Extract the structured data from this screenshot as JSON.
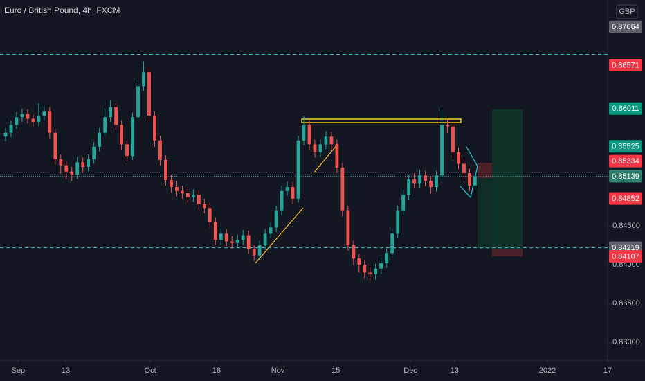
{
  "chart_data": {
    "type": "candlestick",
    "title": "Euro / British Pound, 4h, FXCM",
    "currency": "GBP",
    "up_color": "#26a69a",
    "down_color": "#ef5350",
    "xlim": [
      0,
      110
    ],
    "ylim": [
      0.8277,
      0.8741
    ],
    "xticks": [
      {
        "value": 3.3,
        "label": "Sep"
      },
      {
        "value": 11.9,
        "label": "13"
      },
      {
        "value": 27.2,
        "label": "Oct"
      },
      {
        "value": 39.2,
        "label": "18"
      },
      {
        "value": 50.3,
        "label": "Nov"
      },
      {
        "value": 60.8,
        "label": "15"
      },
      {
        "value": 74.3,
        "label": "Dec"
      },
      {
        "value": 82.3,
        "label": "13"
      },
      {
        "value": 99.1,
        "label": "2022"
      },
      {
        "value": 110,
        "label": "17"
      }
    ],
    "yticks": [
      {
        "value": 0.845,
        "label": "0.84500"
      },
      {
        "value": 0.84,
        "label": "0.84000"
      },
      {
        "value": 0.835,
        "label": "0.83500"
      },
      {
        "value": 0.83,
        "label": "0.83000"
      }
    ],
    "price_lines": [
      {
        "value": 0.8671,
        "color": "#26c6da",
        "style": "dashed"
      },
      {
        "value": 0.84219,
        "color": "#26c6da",
        "style": "dashed"
      },
      {
        "value": 0.85139,
        "color": "#26a69a",
        "style": "dotted"
      }
    ],
    "price_labels": [
      {
        "value": 0.87064,
        "label": "0.87064",
        "color": "#5d606b"
      },
      {
        "value": 0.86571,
        "label": "0.86571",
        "color": "#f23645"
      },
      {
        "value": 0.86011,
        "label": "0.86011",
        "color": "#089981"
      },
      {
        "value": 0.85525,
        "label": "0.85525",
        "color": "#089981"
      },
      {
        "value": 0.85334,
        "label": "0.85334",
        "color": "#f23645"
      },
      {
        "value": 0.85139,
        "label": "0.85139",
        "color": "#2e7d6b"
      },
      {
        "value": 0.84852,
        "label": "0.84852",
        "color": "#f23645"
      },
      {
        "value": 0.84219,
        "label": "0.84219",
        "color": "#5d606b"
      },
      {
        "value": 0.84107,
        "label": "0.84107",
        "color": "#f23645"
      }
    ],
    "ohlc": [
      [
        0.8565,
        0.8576,
        0.8559,
        0.857
      ],
      [
        0.857,
        0.8586,
        0.8564,
        0.858
      ],
      [
        0.858,
        0.8597,
        0.8575,
        0.859
      ],
      [
        0.859,
        0.8601,
        0.8584,
        0.8594
      ],
      [
        0.8594,
        0.86,
        0.8582,
        0.8588
      ],
      [
        0.8588,
        0.8594,
        0.8578,
        0.8584
      ],
      [
        0.8584,
        0.8608,
        0.8578,
        0.8592
      ],
      [
        0.8592,
        0.8604,
        0.8586,
        0.8598
      ],
      [
        0.8598,
        0.8603,
        0.8563,
        0.857
      ],
      [
        0.857,
        0.8575,
        0.8529,
        0.8536
      ],
      [
        0.8536,
        0.8542,
        0.8517,
        0.8528
      ],
      [
        0.8528,
        0.8534,
        0.851,
        0.852
      ],
      [
        0.852,
        0.8526,
        0.8508,
        0.8516
      ],
      [
        0.8516,
        0.8539,
        0.851,
        0.8532
      ],
      [
        0.8532,
        0.8538,
        0.8518,
        0.8526
      ],
      [
        0.8526,
        0.8542,
        0.852,
        0.8536
      ],
      [
        0.8536,
        0.8558,
        0.853,
        0.8552
      ],
      [
        0.8552,
        0.8576,
        0.8546,
        0.857
      ],
      [
        0.857,
        0.8602,
        0.8565,
        0.859
      ],
      [
        0.859,
        0.8612,
        0.8584,
        0.8603
      ],
      [
        0.8603,
        0.8608,
        0.8574,
        0.858
      ],
      [
        0.858,
        0.8586,
        0.8548,
        0.8555
      ],
      [
        0.8555,
        0.856,
        0.8533,
        0.854
      ],
      [
        0.854,
        0.8596,
        0.8535,
        0.859
      ],
      [
        0.859,
        0.8638,
        0.8585,
        0.863
      ],
      [
        0.863,
        0.8662,
        0.8624,
        0.8648
      ],
      [
        0.8648,
        0.8655,
        0.8585,
        0.8592
      ],
      [
        0.8592,
        0.8598,
        0.8552,
        0.856
      ],
      [
        0.856,
        0.8566,
        0.8528,
        0.8535
      ],
      [
        0.8535,
        0.8541,
        0.8502,
        0.8509
      ],
      [
        0.8509,
        0.8516,
        0.8493,
        0.85
      ],
      [
        0.85,
        0.8508,
        0.8488,
        0.8495
      ],
      [
        0.8495,
        0.8502,
        0.8485,
        0.8492
      ],
      [
        0.8492,
        0.85,
        0.848,
        0.8487
      ],
      [
        0.8487,
        0.8497,
        0.8481,
        0.849
      ],
      [
        0.849,
        0.8496,
        0.8471,
        0.8478
      ],
      [
        0.8478,
        0.8485,
        0.8466,
        0.8473
      ],
      [
        0.8473,
        0.848,
        0.8448,
        0.8455
      ],
      [
        0.8455,
        0.8461,
        0.8425,
        0.8432
      ],
      [
        0.8432,
        0.8447,
        0.8426,
        0.844
      ],
      [
        0.844,
        0.8446,
        0.8424,
        0.843
      ],
      [
        0.843,
        0.8437,
        0.8421,
        0.8428
      ],
      [
        0.8428,
        0.8439,
        0.8422,
        0.8432
      ],
      [
        0.8432,
        0.8445,
        0.8426,
        0.8438
      ],
      [
        0.8438,
        0.8444,
        0.8414,
        0.842
      ],
      [
        0.842,
        0.8426,
        0.8405,
        0.8412
      ],
      [
        0.8412,
        0.8431,
        0.8406,
        0.8425
      ],
      [
        0.8425,
        0.8446,
        0.8419,
        0.844
      ],
      [
        0.844,
        0.8455,
        0.8434,
        0.8448
      ],
      [
        0.8448,
        0.8476,
        0.8442,
        0.847
      ],
      [
        0.847,
        0.8502,
        0.8464,
        0.8495
      ],
      [
        0.8495,
        0.8507,
        0.8489,
        0.85
      ],
      [
        0.85,
        0.8506,
        0.8478,
        0.8485
      ],
      [
        0.8485,
        0.8566,
        0.848,
        0.856
      ],
      [
        0.856,
        0.8592,
        0.8554,
        0.858
      ],
      [
        0.858,
        0.8586,
        0.8548,
        0.8555
      ],
      [
        0.8555,
        0.8561,
        0.8538,
        0.8545
      ],
      [
        0.8545,
        0.8562,
        0.8539,
        0.8555
      ],
      [
        0.8555,
        0.8572,
        0.8549,
        0.8565
      ],
      [
        0.8565,
        0.8571,
        0.8548,
        0.8555
      ],
      [
        0.8555,
        0.8561,
        0.8518,
        0.8525
      ],
      [
        0.8525,
        0.8531,
        0.8462,
        0.847
      ],
      [
        0.847,
        0.8476,
        0.8418,
        0.8425
      ],
      [
        0.8425,
        0.8431,
        0.84,
        0.8408
      ],
      [
        0.8408,
        0.8414,
        0.839,
        0.84
      ],
      [
        0.84,
        0.8406,
        0.8382,
        0.839
      ],
      [
        0.839,
        0.8397,
        0.838,
        0.8388
      ],
      [
        0.8388,
        0.8401,
        0.8381,
        0.8395
      ],
      [
        0.8395,
        0.8409,
        0.8388,
        0.8402
      ],
      [
        0.8402,
        0.8421,
        0.8396,
        0.8415
      ],
      [
        0.8415,
        0.8446,
        0.8409,
        0.844
      ],
      [
        0.844,
        0.8476,
        0.8434,
        0.847
      ],
      [
        0.847,
        0.8497,
        0.8464,
        0.849
      ],
      [
        0.849,
        0.8516,
        0.8484,
        0.851
      ],
      [
        0.851,
        0.8518,
        0.8498,
        0.8505
      ],
      [
        0.8505,
        0.8522,
        0.8498,
        0.8515
      ],
      [
        0.8515,
        0.8521,
        0.8501,
        0.8508
      ],
      [
        0.8508,
        0.8514,
        0.8492,
        0.85
      ],
      [
        0.85,
        0.8521,
        0.8494,
        0.8515
      ],
      [
        0.8515,
        0.86,
        0.8509,
        0.858
      ],
      [
        0.858,
        0.8588,
        0.857,
        0.8578
      ],
      [
        0.8578,
        0.8584,
        0.8538,
        0.8545
      ],
      [
        0.8545,
        0.8551,
        0.8523,
        0.853
      ],
      [
        0.853,
        0.8536,
        0.851,
        0.8518
      ],
      [
        0.8518,
        0.8524,
        0.8495,
        0.8502
      ],
      [
        0.8502,
        0.852,
        0.8496,
        0.8514
      ]
    ]
  }
}
